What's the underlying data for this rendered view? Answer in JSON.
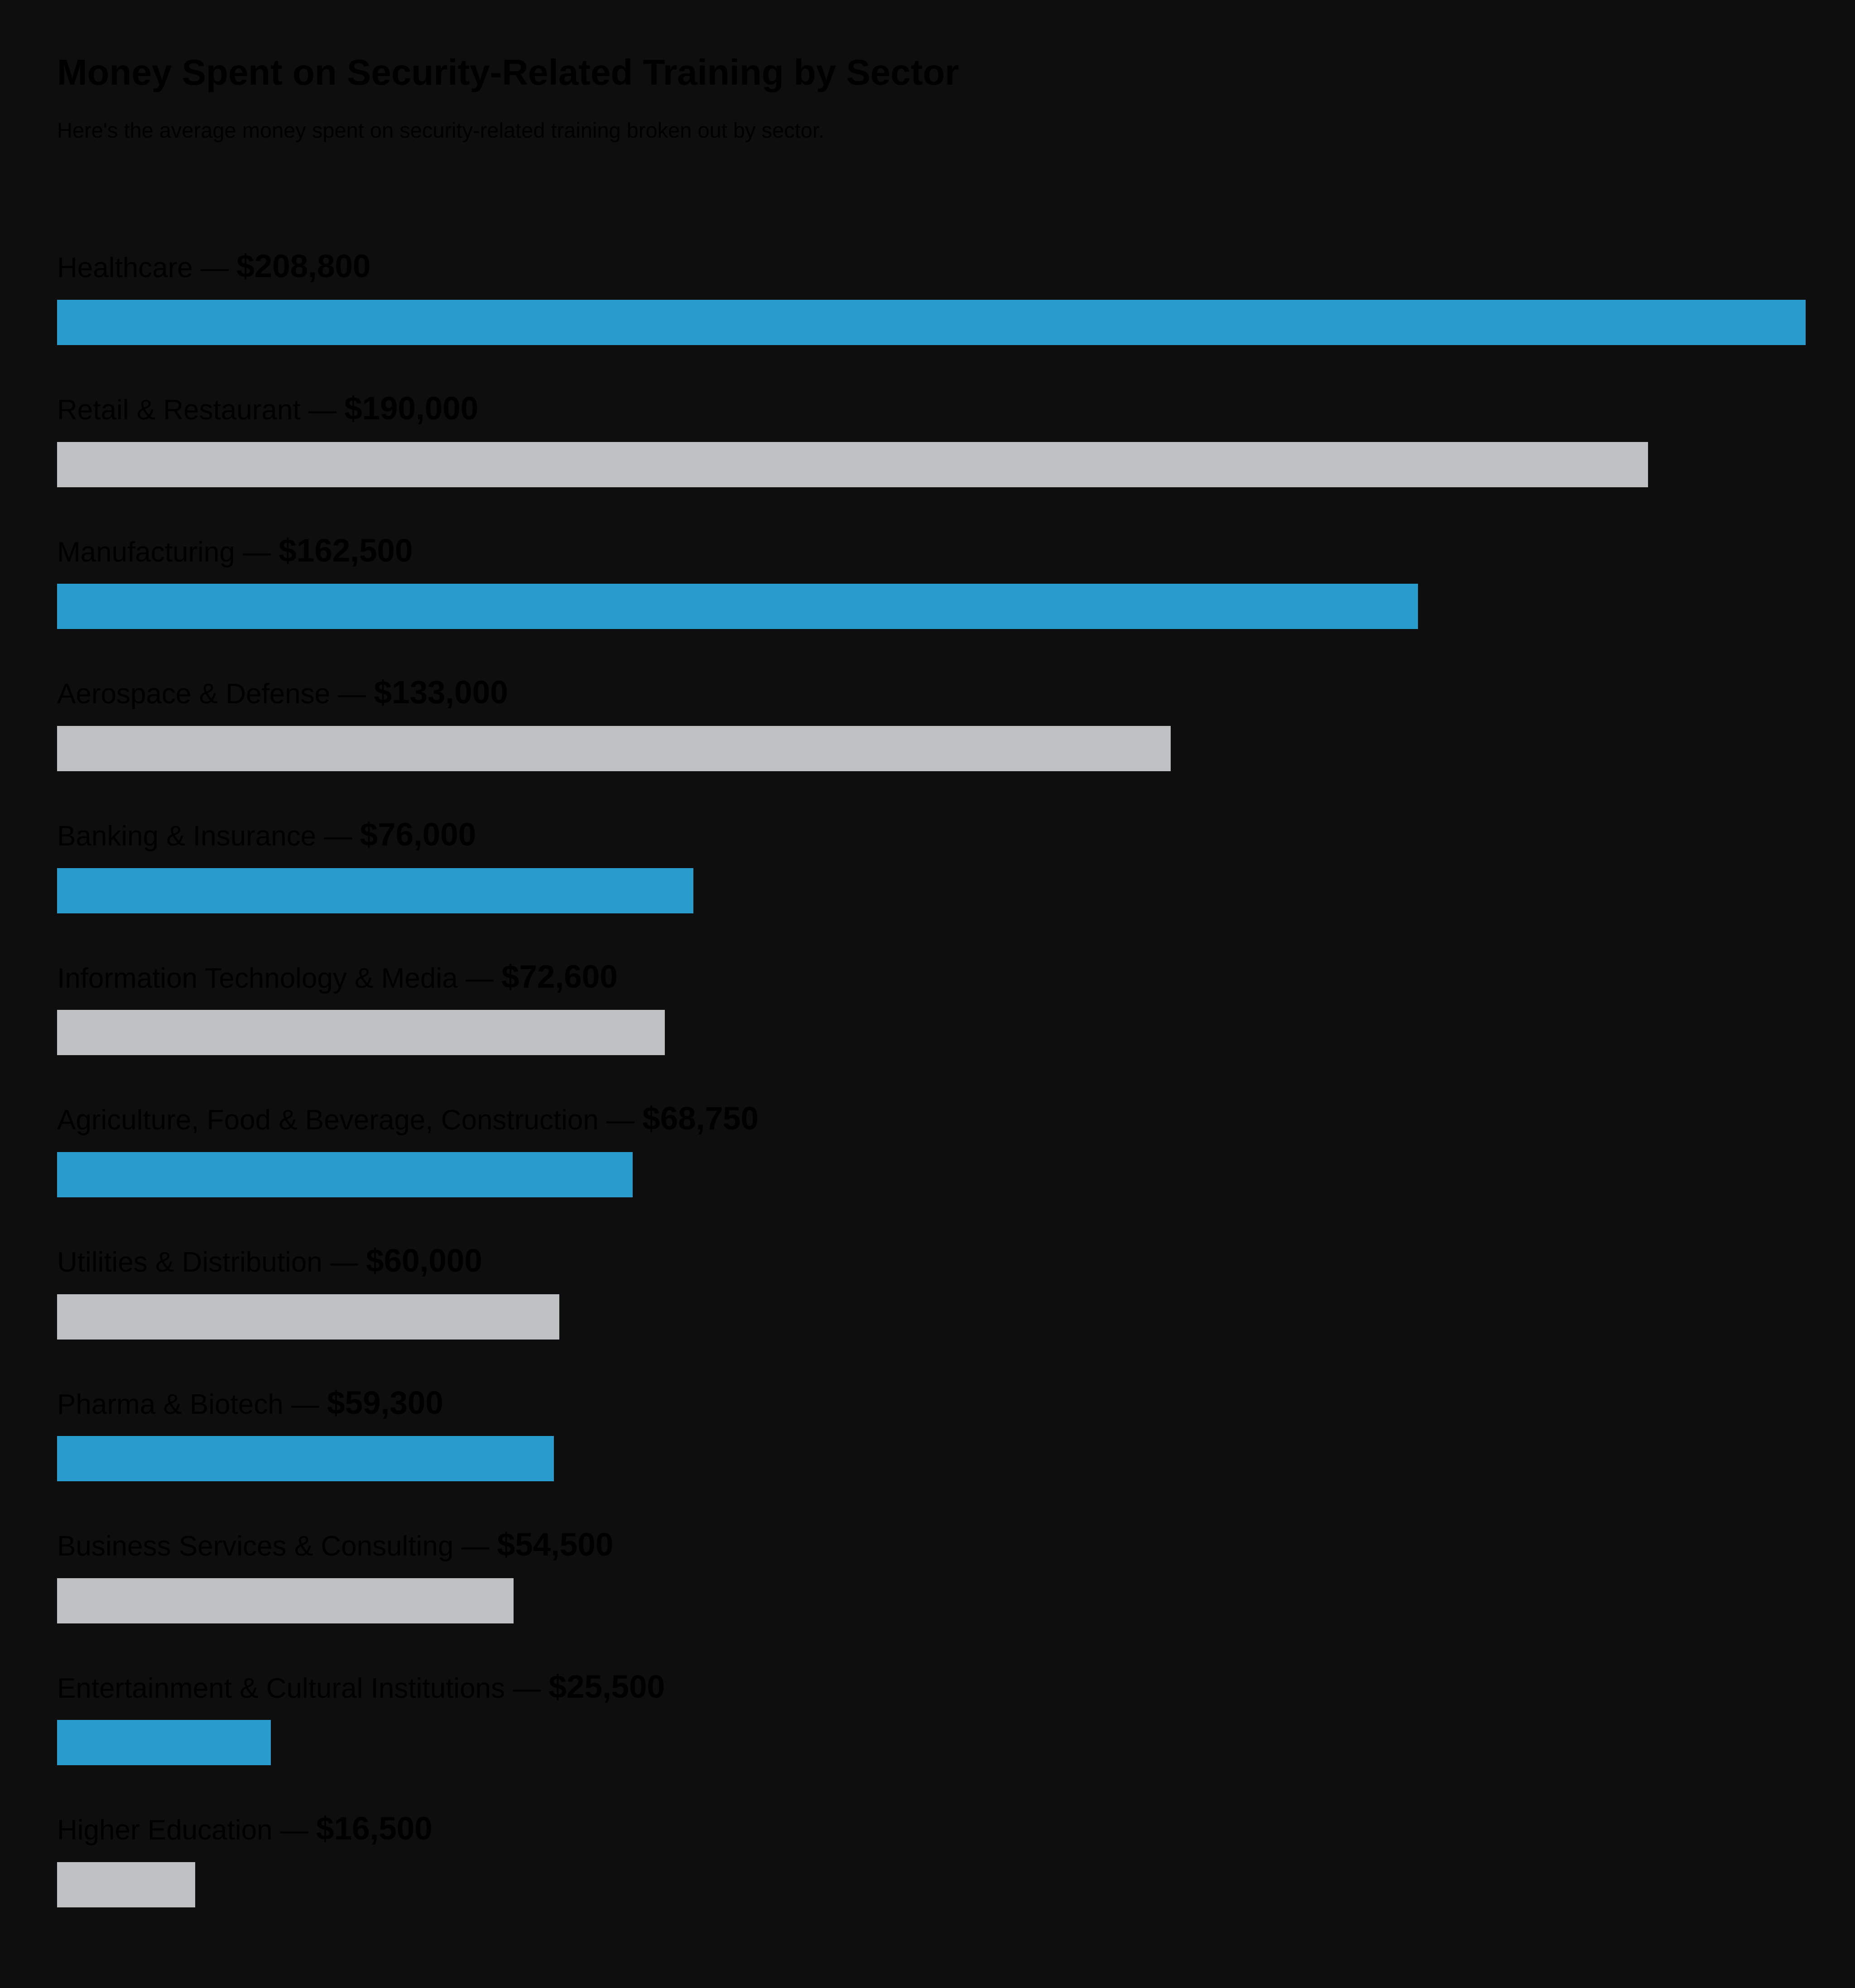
{
  "header": {
    "title": "Money Spent on Security-Related Training by Sector",
    "subtitle": "Here's the average money spent on security-related training broken out by sector."
  },
  "colors": {
    "background": "#0e0e0e",
    "text": "#000000",
    "bar_blue": "#2a9bcd",
    "bar_gray": "#bfc0c2"
  },
  "separator": " — ",
  "chart_data": {
    "type": "bar",
    "orientation": "horizontal",
    "title": "Money Spent on Security-Related Training by Sector",
    "subtitle": "Here's the average money spent on security-related training broken out by sector.",
    "xlabel": "",
    "ylabel": "",
    "xlim": [
      0,
      208800
    ],
    "grid": false,
    "legend": "none",
    "categories": [
      "Healthcare",
      "Retail & Restaurant",
      "Manufacturing",
      "Aerospace & Defense",
      "Banking & Insurance",
      "Information Technology & Media",
      "Agriculture, Food & Beverage, Construction",
      "Utilities & Distribution",
      "Pharma & Biotech",
      "Business Services & Consulting",
      "Entertainment & Cultural Institutions",
      "Higher Education"
    ],
    "values": [
      208800,
      190000,
      162500,
      133000,
      76000,
      72600,
      68750,
      60000,
      59300,
      54500,
      25500,
      16500
    ],
    "value_labels": [
      "$208,800",
      "$190,000",
      "$162,500",
      "$133,000",
      "$76,000",
      "$72,600",
      "$68,750",
      "$60,000",
      "$59,300",
      "$54,500",
      "$25,500",
      "$16,500"
    ],
    "bar_colors": [
      "#2a9bcd",
      "#bfc0c2",
      "#2a9bcd",
      "#bfc0c2",
      "#2a9bcd",
      "#bfc0c2",
      "#2a9bcd",
      "#bfc0c2",
      "#2a9bcd",
      "#bfc0c2",
      "#2a9bcd",
      "#bfc0c2"
    ]
  }
}
